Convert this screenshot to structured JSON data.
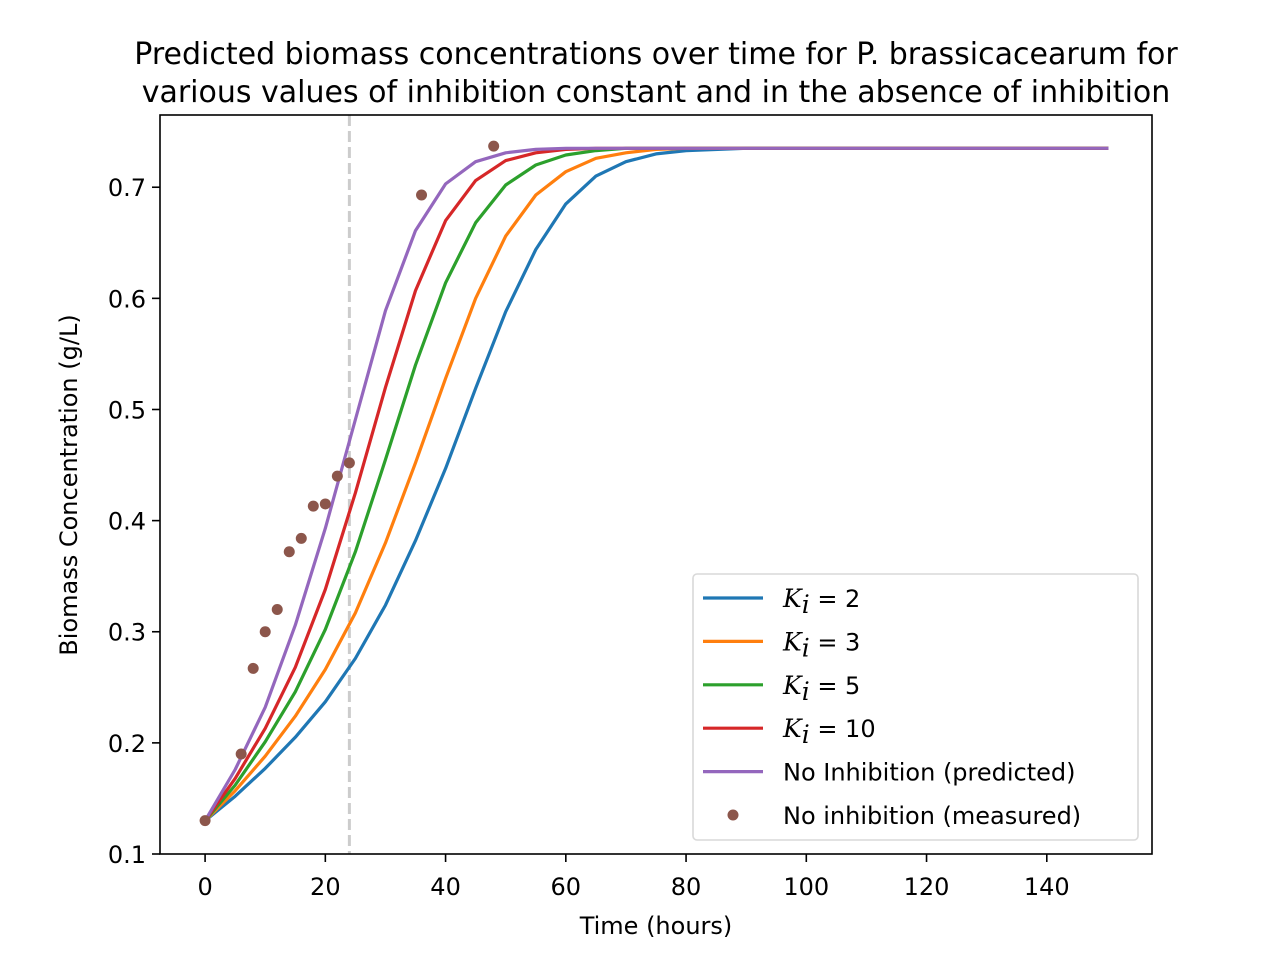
{
  "chart_data": {
    "type": "line",
    "title": "Predicted biomass concentrations over time for P. brassicacearum for various values of inhibition constant and in the absence of inhibition",
    "title_lines": [
      "Predicted biomass concentrations over time for P. brassicacearum for",
      "various values of inhibition constant and in the absence of inhibition"
    ],
    "xlabel": "Time (hours)",
    "ylabel": "Biomass Concentration (g/L)",
    "xlim": [
      -7.5,
      157.5
    ],
    "ylim": [
      0.1,
      0.765
    ],
    "xticks": [
      0,
      20,
      40,
      60,
      80,
      100,
      120,
      140
    ],
    "yticks": [
      0.1,
      0.2,
      0.3,
      0.4,
      0.5,
      0.6,
      0.7
    ],
    "xtick_labels": [
      "0",
      "20",
      "40",
      "60",
      "80",
      "100",
      "120",
      "140"
    ],
    "ytick_labels": [
      "0.1",
      "0.2",
      "0.3",
      "0.4",
      "0.5",
      "0.6",
      "0.7"
    ],
    "grid": false,
    "legend_position": "lower-right",
    "vline": {
      "x": 24,
      "color": "#cccccc",
      "style": "dashed"
    },
    "series": [
      {
        "name": "K_i = 2",
        "label_sym": "K",
        "label_sub": "i",
        "label_rest": " = 2",
        "color": "#1f77b4",
        "kind": "line",
        "x": [
          0,
          5,
          10,
          15,
          20,
          25,
          30,
          35,
          40,
          45,
          50,
          55,
          60,
          65,
          70,
          75,
          80,
          90,
          100,
          110,
          120,
          130,
          140,
          150
        ],
        "y": [
          0.13,
          0.152,
          0.177,
          0.205,
          0.237,
          0.276,
          0.324,
          0.382,
          0.447,
          0.519,
          0.588,
          0.644,
          0.685,
          0.71,
          0.723,
          0.73,
          0.733,
          0.735,
          0.735,
          0.735,
          0.735,
          0.735,
          0.735,
          0.735
        ]
      },
      {
        "name": "K_i = 3",
        "label_sym": "K",
        "label_sub": "i",
        "label_rest": " = 3",
        "color": "#ff7f0e",
        "kind": "line",
        "x": [
          0,
          5,
          10,
          15,
          20,
          25,
          30,
          35,
          40,
          45,
          50,
          55,
          60,
          65,
          70,
          75,
          80,
          90,
          100,
          110,
          120,
          130,
          140,
          150
        ],
        "y": [
          0.13,
          0.157,
          0.188,
          0.224,
          0.266,
          0.317,
          0.38,
          0.452,
          0.528,
          0.6,
          0.656,
          0.693,
          0.714,
          0.726,
          0.731,
          0.734,
          0.735,
          0.735,
          0.735,
          0.735,
          0.735,
          0.735,
          0.735,
          0.735
        ]
      },
      {
        "name": "K_i = 5",
        "label_sym": "K",
        "label_sub": "i",
        "label_rest": " = 5",
        "color": "#2ca02c",
        "kind": "line",
        "x": [
          0,
          5,
          10,
          15,
          20,
          25,
          30,
          35,
          40,
          45,
          50,
          55,
          60,
          65,
          70,
          75,
          80,
          90,
          100,
          110,
          120,
          130,
          140,
          150
        ],
        "y": [
          0.13,
          0.162,
          0.201,
          0.246,
          0.302,
          0.372,
          0.455,
          0.54,
          0.614,
          0.668,
          0.702,
          0.72,
          0.729,
          0.733,
          0.735,
          0.735,
          0.735,
          0.735,
          0.735,
          0.735,
          0.735,
          0.735,
          0.735,
          0.735
        ]
      },
      {
        "name": "K_i = 10",
        "label_sym": "K",
        "label_sub": "i",
        "label_rest": " = 10",
        "color": "#d62728",
        "kind": "line",
        "x": [
          0,
          5,
          10,
          15,
          20,
          25,
          30,
          35,
          40,
          45,
          50,
          55,
          60,
          65,
          70,
          75,
          80,
          90,
          100,
          110,
          120,
          130,
          140,
          150
        ],
        "y": [
          0.13,
          0.168,
          0.213,
          0.268,
          0.338,
          0.425,
          0.52,
          0.607,
          0.67,
          0.706,
          0.724,
          0.731,
          0.734,
          0.735,
          0.735,
          0.735,
          0.735,
          0.735,
          0.735,
          0.735,
          0.735,
          0.735,
          0.735,
          0.735
        ]
      },
      {
        "name": "No Inhibition (predicted)",
        "label_rest": "No Inhibition (predicted)",
        "color": "#9467bd",
        "kind": "line",
        "x": [
          0,
          5,
          10,
          15,
          20,
          25,
          30,
          35,
          40,
          45,
          50,
          55,
          60,
          65,
          70,
          75,
          80,
          90,
          100,
          110,
          120,
          130,
          140,
          150
        ],
        "y": [
          0.13,
          0.176,
          0.232,
          0.306,
          0.393,
          0.491,
          0.589,
          0.661,
          0.703,
          0.723,
          0.731,
          0.734,
          0.735,
          0.735,
          0.735,
          0.735,
          0.735,
          0.735,
          0.735,
          0.735,
          0.735,
          0.735,
          0.735,
          0.735
        ]
      },
      {
        "name": "No inhibition (measured)",
        "label_rest": "No inhibition (measured)",
        "color": "#8c564b",
        "kind": "scatter",
        "x": [
          0,
          6,
          8,
          10,
          12,
          14,
          16,
          18,
          20,
          22,
          24,
          36,
          48
        ],
        "y": [
          0.13,
          0.19,
          0.267,
          0.3,
          0.32,
          0.372,
          0.384,
          0.413,
          0.415,
          0.44,
          0.452,
          0.693,
          0.737
        ]
      }
    ]
  }
}
